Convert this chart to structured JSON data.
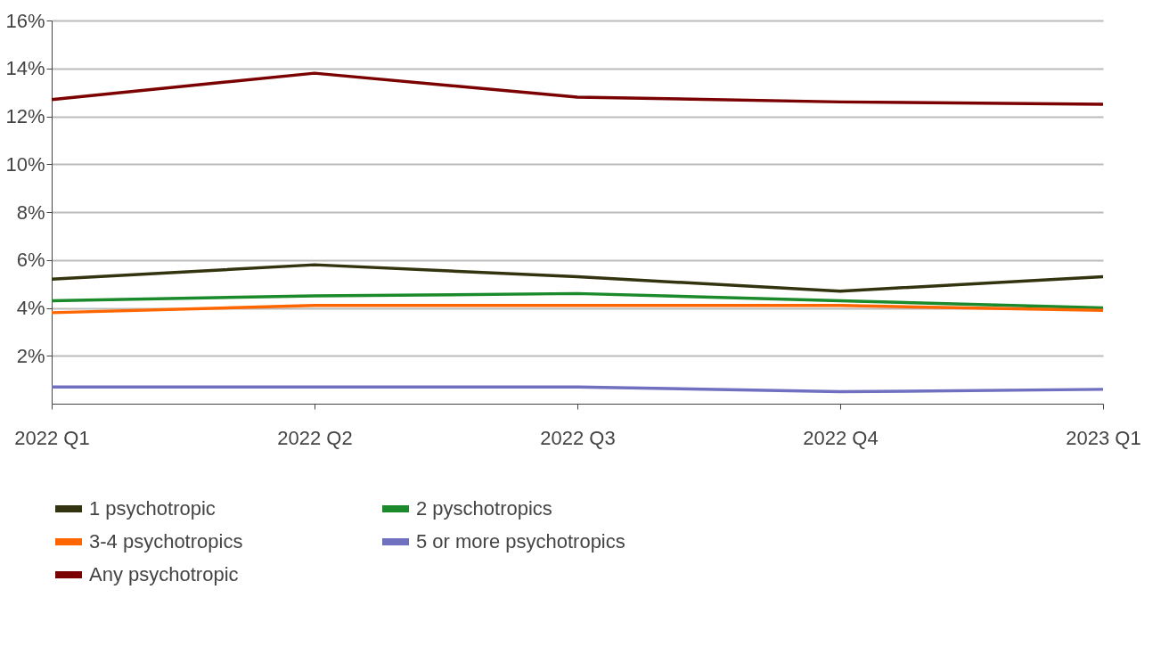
{
  "chart_data": {
    "type": "line",
    "categories": [
      "2022 Q1",
      "2022 Q2",
      "2022 Q3",
      "2022 Q4",
      "2023 Q1"
    ],
    "series": [
      {
        "name": "1 psychotropic",
        "color": "#333310",
        "values": [
          5.2,
          5.8,
          5.3,
          4.7,
          5.3
        ]
      },
      {
        "name": "2 pyschotropics",
        "color": "#1a8a2a",
        "values": [
          4.3,
          4.5,
          4.6,
          4.3,
          4.0
        ]
      },
      {
        "name": "3-4 psychotropics",
        "color": "#ff6600",
        "values": [
          3.8,
          4.1,
          4.1,
          4.1,
          3.9
        ]
      },
      {
        "name": "5 or more psychotropics",
        "color": "#7070c0",
        "values": [
          0.7,
          0.7,
          0.7,
          0.5,
          0.6
        ]
      },
      {
        "name": "Any psychotropic",
        "color": "#7b0000",
        "values": [
          12.7,
          13.8,
          12.8,
          12.6,
          12.5
        ]
      }
    ],
    "ylim": [
      0,
      16
    ],
    "yticks": [
      {
        "value": 2,
        "label": "2%"
      },
      {
        "value": 4,
        "label": "4%"
      },
      {
        "value": 6,
        "label": "6%"
      },
      {
        "value": 8,
        "label": "8%"
      },
      {
        "value": 10,
        "label": "10%"
      },
      {
        "value": 12,
        "label": "12%"
      },
      {
        "value": 14,
        "label": "14%"
      },
      {
        "value": 16,
        "label": "16%"
      }
    ],
    "grid": "y",
    "legend": "bottom",
    "marker": "none",
    "line_style": "solid"
  }
}
